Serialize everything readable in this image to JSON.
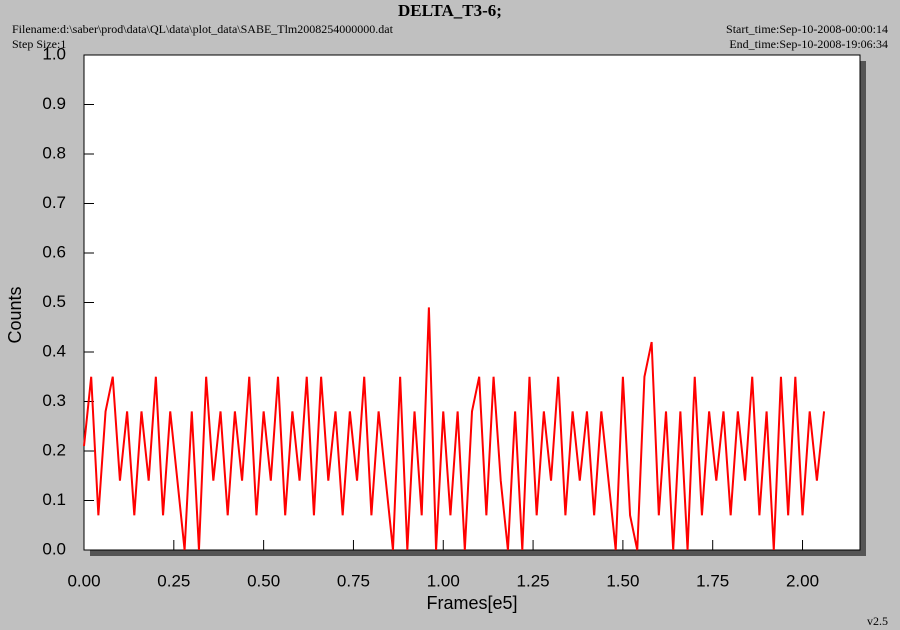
{
  "chart_data": {
    "type": "line",
    "title": "DELTA_T3-6;",
    "filename": "Filename:d:\\saber\\prod\\data\\QL\\data\\plot_data\\SABE_Tlm2008254000000.dat",
    "step_size": "Step Size:1",
    "start_time": "Start_time:Sep-10-2008-00:00:14",
    "end_time": "End_time:Sep-10-2008-19:06:34",
    "version": "v2.5",
    "x_label": "Frames[e5]",
    "y_label": "Counts",
    "color": "#ff0000",
    "xlim": [
      0,
      2.16
    ],
    "ylim": [
      0,
      1
    ],
    "xticks": [
      {
        "value": 0,
        "label": "0.00"
      },
      0.25,
      {
        "value": 0.5,
        "label": "0.50"
      },
      0.75,
      {
        "value": 1,
        "label": "1.00"
      },
      1.25,
      {
        "value": 1.5,
        "label": "1.50"
      },
      1.75,
      {
        "value": 2,
        "label": "2.00"
      }
    ],
    "yticks": [
      {
        "value": 0,
        "label": "0.0"
      },
      0.1,
      0.2,
      0.3,
      0.4,
      0.5,
      0.6,
      0.7,
      0.8,
      0.9,
      {
        "value": 1,
        "label": "1.0"
      }
    ],
    "x": [
      0,
      0.02,
      0.04,
      0.06,
      0.08,
      0.1,
      0.12,
      0.14,
      0.16,
      0.18,
      0.2,
      0.22,
      0.24,
      0.26,
      0.28,
      0.3,
      0.32,
      0.34,
      0.36,
      0.38,
      0.4,
      0.42,
      0.44,
      0.46,
      0.48,
      0.5,
      0.52,
      0.54,
      0.56,
      0.58,
      0.6,
      0.62,
      0.64,
      0.66,
      0.68,
      0.7,
      0.72,
      0.74,
      0.76,
      0.78,
      0.8,
      0.82,
      0.84,
      0.86,
      0.88,
      0.9,
      0.92,
      0.94,
      0.96,
      0.98,
      1,
      1.02,
      1.04,
      1.06,
      1.08,
      1.1,
      1.12,
      1.14,
      1.16,
      1.18,
      1.2,
      1.22,
      1.24,
      1.26,
      1.28,
      1.3,
      1.32,
      1.34,
      1.36,
      1.38,
      1.4,
      1.42,
      1.44,
      1.46,
      1.48,
      1.5,
      1.52,
      1.54,
      1.56,
      1.58,
      1.6,
      1.62,
      1.64,
      1.66,
      1.68,
      1.7,
      1.72,
      1.74,
      1.76,
      1.78,
      1.8,
      1.82,
      1.84,
      1.86,
      1.88,
      1.9,
      1.92,
      1.94,
      1.96,
      1.98,
      2,
      2.02,
      2.04,
      2.06
    ],
    "values": [
      0.21,
      0.35,
      0.07,
      0.28,
      0.35,
      0.14,
      0.28,
      0.07,
      0.28,
      0.14,
      0.35,
      0.07,
      0.28,
      0.14,
      0,
      0.28,
      0,
      0.35,
      0.14,
      0.28,
      0.07,
      0.28,
      0.14,
      0.35,
      0.07,
      0.28,
      0.14,
      0.35,
      0.07,
      0.28,
      0.14,
      0.35,
      0.07,
      0.35,
      0.14,
      0.28,
      0.07,
      0.28,
      0.14,
      0.35,
      0.07,
      0.28,
      0.14,
      0,
      0.35,
      0,
      0.28,
      0.07,
      0.49,
      0,
      0.28,
      0.07,
      0.28,
      0,
      0.28,
      0.35,
      0.07,
      0.35,
      0.14,
      0,
      0.28,
      0,
      0.35,
      0.07,
      0.28,
      0.14,
      0.35,
      0.07,
      0.28,
      0.14,
      0.28,
      0.07,
      0.28,
      0.14,
      0,
      0.35,
      0.07,
      0,
      0.35,
      0.42,
      0.07,
      0.28,
      0,
      0.28,
      0,
      0.35,
      0.07,
      0.28,
      0.14,
      0.28,
      0.07,
      0.28,
      0.14,
      0.35,
      0.07,
      0.28,
      0,
      0.35,
      0.07,
      0.35,
      0.07,
      0.28,
      0.14,
      0.28
    ]
  }
}
